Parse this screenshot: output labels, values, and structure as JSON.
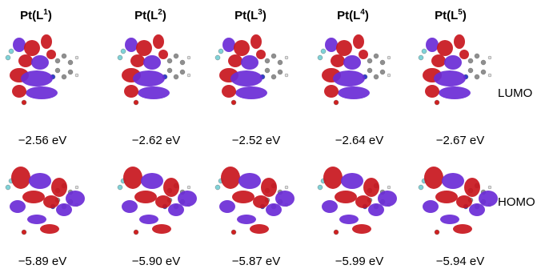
{
  "columns": [
    {
      "prefix": "Pt(L",
      "sup": "1",
      "suffix": ")",
      "lumo": "−2.56 eV",
      "homo": "−5.89 eV"
    },
    {
      "prefix": "Pt(L",
      "sup": "2",
      "suffix": ")",
      "lumo": "−2.62 eV",
      "homo": "−5.90 eV"
    },
    {
      "prefix": "Pt(L",
      "sup": "3",
      "suffix": ")",
      "lumo": "−2.52 eV",
      "homo": "−5.87 eV"
    },
    {
      "prefix": "Pt(L",
      "sup": "4",
      "suffix": ")",
      "lumo": "−2.64 eV",
      "homo": "−5.99 eV"
    },
    {
      "prefix": "Pt(L",
      "sup": "5",
      "suffix": ")",
      "lumo": "−2.67 eV",
      "homo": "−5.94 eV"
    }
  ],
  "row_labels": {
    "lumo": "LUMO",
    "homo": "HOMO"
  },
  "colors": {
    "positive_lobe": "#c8161d",
    "negative_lobe": "#6a2bd6",
    "carbon": "#8f8f8f",
    "hydrogen": "#e0e0e0",
    "fluorine": "#7fd3d8",
    "nitrogen": "#2f3fc7",
    "oxygen": "#d02020"
  }
}
